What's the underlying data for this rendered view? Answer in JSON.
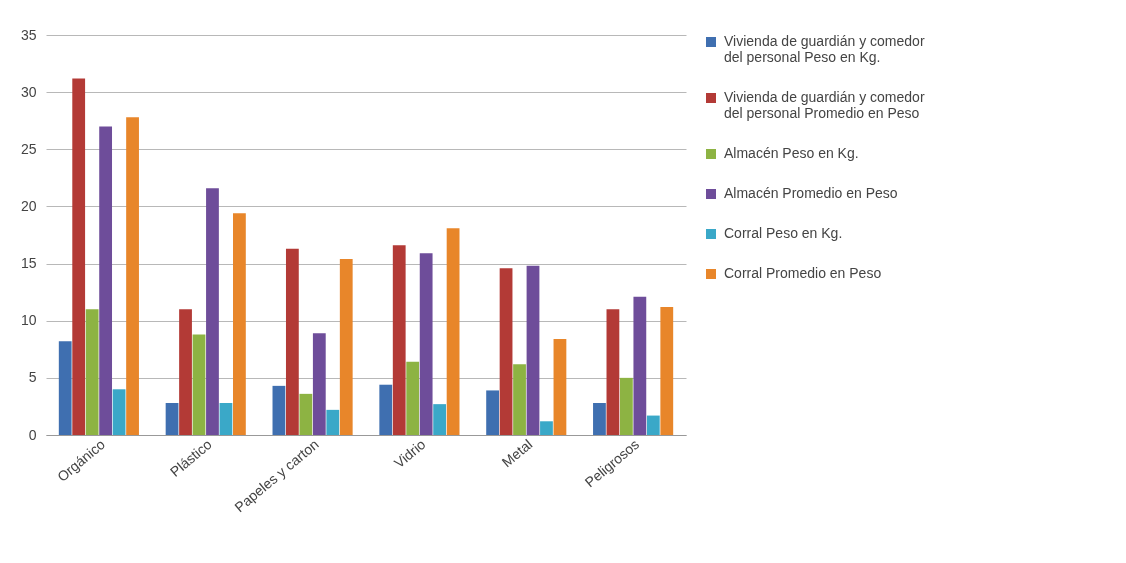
{
  "chart_data": {
    "type": "bar",
    "categories": [
      "Orgánico",
      "Plástico",
      "Papeles y carton",
      "Vidrio",
      "Metal",
      "Peligrosos"
    ],
    "series": [
      {
        "name": "Vivienda de guardián y comedor del personal Peso en Kg.",
        "color": "#3f6fb0",
        "values": [
          8.2,
          2.8,
          4.3,
          4.4,
          3.9,
          2.8
        ]
      },
      {
        "name": "Vivienda de guardián y comedor del personal Promedio en Peso",
        "color": "#b33a36",
        "values": [
          31.2,
          11,
          16.3,
          16.6,
          14.6,
          11
        ]
      },
      {
        "name": "Almacén Peso en Kg.",
        "color": "#8db343",
        "values": [
          11,
          8.8,
          3.6,
          6.4,
          6.2,
          5
        ]
      },
      {
        "name": "Almacén Promedio en Peso",
        "color": "#6e4d9a",
        "values": [
          27,
          21.6,
          8.9,
          15.9,
          14.8,
          12.1
        ]
      },
      {
        "name": "Corral Peso en Kg.",
        "color": "#3aa8c8",
        "values": [
          4,
          2.8,
          2.2,
          2.7,
          1.2,
          1.7
        ]
      },
      {
        "name": "Corral Promedio en Peso",
        "color": "#e8862a",
        "values": [
          27.8,
          19.4,
          15.4,
          18.1,
          8.4,
          11.2
        ]
      }
    ],
    "ylim": [
      0,
      35
    ],
    "yticks": [
      0,
      5,
      10,
      15,
      20,
      25,
      30,
      35
    ],
    "grid": "y",
    "legend": "right"
  }
}
